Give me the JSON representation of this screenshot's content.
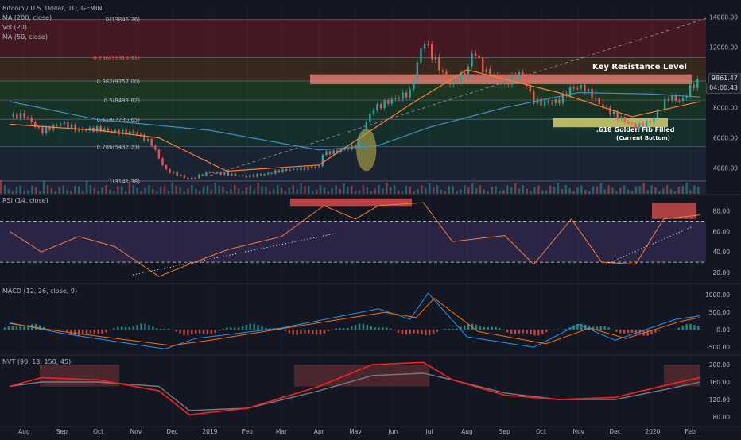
{
  "header": {
    "symbol_line": "Bitcoin / U.S. Dollar, 1D, GEMINI",
    "indicator_1": "MA (200, close)",
    "indicator_2": "Vol (20)",
    "indicator_3": "MA (50, close)"
  },
  "annotations": {
    "key_resistance": "Key Resistance Level",
    "golden_fib": ".618 Golden Fib Filled",
    "current_bottom": "(Current Bottom)"
  },
  "price_axis": {
    "current_price": "9861.47",
    "countdown": "04:00:43",
    "tag_color": "#26a69a"
  },
  "chart_data": [
    {
      "type": "candlestick",
      "title": "Bitcoin / U.S. Dollar, 1D, GEMINI",
      "x_tick_labels": [
        "Aug",
        "Sep",
        "Oct",
        "Nov",
        "Dec",
        "2019",
        "Feb",
        "Mar",
        "Apr",
        "May",
        "Jun",
        "Jul",
        "Aug",
        "Sep",
        "Oct",
        "Nov",
        "Dec",
        "2020",
        "Feb"
      ],
      "y_tick_labels": [
        "14000.00",
        "12000.00",
        "10000.00",
        "8000.00",
        "6000.00",
        "4000.00"
      ],
      "ylim": [
        2300,
        14700
      ],
      "fib_levels": [
        {
          "ratio": "0",
          "price": 13846.26,
          "label": "0(13846.26)",
          "band_color": "#4a1a24"
        },
        {
          "ratio": "0.236",
          "price": 11319.91,
          "label": "0.236(11319.91)",
          "band_color": "#3b2a1c"
        },
        {
          "ratio": "0.382",
          "price": 9757.0,
          "label": "0.382(9757.00)",
          "band_color": "#1f3a22"
        },
        {
          "ratio": "0.5",
          "price": 8493.82,
          "label": "0.5(8493.82)",
          "band_color": "#173525"
        },
        {
          "ratio": "0.618",
          "price": 7230.65,
          "label": "0.618(7230.65)",
          "band_color": "#16322f"
        },
        {
          "ratio": "0.786",
          "price": 5432.23,
          "label": "0.786(5432.23)",
          "band_color": "#1c2533"
        },
        {
          "ratio": "1",
          "price": 3141.38,
          "label": "1(3141.38)",
          "band_color": "#22233a"
        }
      ],
      "price_series": {
        "name": "BTCUSD",
        "x": [
          "2018-07-20",
          "2018-08-01",
          "2018-08-15",
          "2018-09-01",
          "2018-09-15",
          "2018-10-01",
          "2018-10-15",
          "2018-11-01",
          "2018-11-14",
          "2018-11-25",
          "2018-12-15",
          "2019-01-01",
          "2019-01-15",
          "2019-02-01",
          "2019-02-15",
          "2019-03-01",
          "2019-03-15",
          "2019-04-01",
          "2019-04-03",
          "2019-04-15",
          "2019-05-01",
          "2019-05-15",
          "2019-06-01",
          "2019-06-15",
          "2019-06-26",
          "2019-07-05",
          "2019-07-17",
          "2019-08-01",
          "2019-08-06",
          "2019-08-15",
          "2019-09-01",
          "2019-09-15",
          "2019-09-24",
          "2019-10-01",
          "2019-10-15",
          "2019-10-26",
          "2019-11-05",
          "2019-11-20",
          "2019-12-01",
          "2019-12-18",
          "2020-01-01",
          "2020-01-14",
          "2020-01-25",
          "2020-02-01",
          "2020-02-09"
        ],
        "y": [
          7400,
          7500,
          6400,
          7000,
          6500,
          6600,
          6400,
          6350,
          5600,
          3900,
          3250,
          3750,
          3600,
          3450,
          3600,
          3850,
          3950,
          4100,
          4950,
          5100,
          5450,
          7900,
          8550,
          9000,
          12500,
          11200,
          9600,
          10300,
          11900,
          10400,
          9600,
          10300,
          8500,
          8300,
          8400,
          9300,
          9350,
          8100,
          7500,
          6700,
          7200,
          8700,
          8400,
          9300,
          9860
        ]
      },
      "ma200": {
        "name": "MA (200, close)",
        "color": "#3f8fc3",
        "x": [
          "2018-07-20",
          "2018-10-01",
          "2019-01-01",
          "2019-04-01",
          "2019-05-20",
          "2019-07-01",
          "2019-09-01",
          "2019-11-01",
          "2020-01-01",
          "2020-02-09"
        ],
        "y": [
          8400,
          7200,
          6500,
          5200,
          5500,
          6700,
          8000,
          9000,
          8900,
          8700
        ]
      },
      "ma50": {
        "name": "MA (50, close)",
        "color": "#ff7f32",
        "x": [
          "2018-07-20",
          "2018-10-01",
          "2018-11-20",
          "2019-01-15",
          "2019-04-01",
          "2019-06-15",
          "2019-08-01",
          "2019-10-15",
          "2019-12-15",
          "2020-02-09"
        ],
        "y": [
          6900,
          6500,
          6000,
          3800,
          4200,
          8200,
          10500,
          9000,
          7400,
          8400
        ]
      },
      "key_resistance_zone": [
        9550,
        10200
      ],
      "golden_fib_zone": [
        6700,
        7300
      ]
    },
    {
      "type": "line",
      "title": "RSI (14, close)",
      "y_tick_labels": [
        "80.00",
        "60.00",
        "40.00",
        "20.00"
      ],
      "ylim": [
        10,
        95
      ],
      "overbought": 70,
      "oversold": 30,
      "series": [
        {
          "name": "RSI",
          "color": "#f57c3a",
          "x": [
            "2018-07-20",
            "2018-08-15",
            "2018-09-15",
            "2018-10-15",
            "2018-11-20",
            "2018-12-15",
            "2019-01-15",
            "2019-03-01",
            "2019-04-05",
            "2019-05-01",
            "2019-05-20",
            "2019-06-26",
            "2019-07-20",
            "2019-09-01",
            "2019-09-25",
            "2019-10-26",
            "2019-11-20",
            "2019-12-18",
            "2020-01-10",
            "2020-02-09"
          ],
          "y": [
            60,
            40,
            55,
            45,
            16,
            28,
            42,
            55,
            85,
            72,
            85,
            88,
            50,
            56,
            28,
            72,
            30,
            28,
            72,
            76
          ]
        }
      ]
    },
    {
      "type": "line",
      "title": "MACD (12, 26, close, 9)",
      "y_tick_labels": [
        "1000.00",
        "500.00",
        "0.00",
        "-500.00"
      ],
      "ylim": [
        -700,
        1300
      ],
      "series": [
        {
          "name": "MACD",
          "color": "#2196f3",
          "x": [
            "2018-07-20",
            "2018-09-01",
            "2018-11-25",
            "2018-12-20",
            "2019-03-01",
            "2019-05-20",
            "2019-06-15",
            "2019-06-30",
            "2019-08-01",
            "2019-09-25",
            "2019-11-01",
            "2019-12-01",
            "2020-01-20",
            "2020-02-09"
          ],
          "y": [
            200,
            -100,
            -550,
            -250,
            50,
            600,
            300,
            1050,
            -200,
            -500,
            150,
            -300,
            300,
            400
          ]
        },
        {
          "name": "Signal",
          "color": "#ff6d00",
          "x": [
            "2018-07-20",
            "2018-09-01",
            "2018-11-30",
            "2019-01-01",
            "2019-03-01",
            "2019-05-25",
            "2019-06-20",
            "2019-07-05",
            "2019-08-10",
            "2019-10-05",
            "2019-11-10",
            "2019-12-10",
            "2020-01-25",
            "2020-02-09"
          ],
          "y": [
            180,
            -50,
            -450,
            -300,
            30,
            500,
            350,
            900,
            -50,
            -400,
            50,
            -250,
            250,
            350
          ]
        }
      ]
    },
    {
      "type": "line",
      "title": "NVT (90, 13, 150, 45)",
      "y_tick_labels": [
        "200.00",
        "160.00",
        "120.00",
        "80.00"
      ],
      "ylim": [
        60,
        220
      ],
      "series": [
        {
          "name": "NVT",
          "color": "#ff1e1e",
          "x": [
            "2018-07-20",
            "2018-08-15",
            "2018-10-01",
            "2018-11-20",
            "2018-12-15",
            "2019-02-01",
            "2019-04-01",
            "2019-05-15",
            "2019-06-26",
            "2019-07-20",
            "2019-09-01",
            "2019-10-15",
            "2019-12-01",
            "2020-01-15",
            "2020-02-09"
          ],
          "y": [
            150,
            170,
            165,
            140,
            85,
            100,
            150,
            200,
            205,
            165,
            130,
            120,
            125,
            155,
            170
          ]
        },
        {
          "name": "Signal",
          "color": "#787b86",
          "x": [
            "2018-07-20",
            "2018-08-15",
            "2018-10-01",
            "2018-11-20",
            "2018-12-15",
            "2019-02-01",
            "2019-04-01",
            "2019-05-15",
            "2019-06-26",
            "2019-07-20",
            "2019-09-01",
            "2019-10-15",
            "2019-12-01",
            "2020-01-15",
            "2020-02-09"
          ],
          "y": [
            150,
            160,
            160,
            150,
            95,
            100,
            140,
            175,
            180,
            165,
            135,
            120,
            120,
            145,
            160
          ]
        }
      ]
    }
  ]
}
